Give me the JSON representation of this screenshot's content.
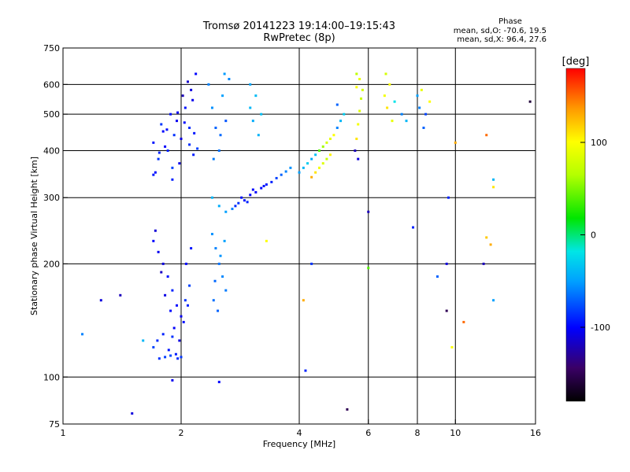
{
  "header": {
    "title": "Tromsø 20141223 19:14:00–19:15:43",
    "subtitle": "RwPretec (8p)"
  },
  "phase_box": {
    "heading": "Phase",
    "line_o": "mean, sd,O: -70.6, 19.5",
    "line_x": "mean, sd,X:  96.4, 27.6"
  },
  "colorbar": {
    "label": "[deg]",
    "min": -180,
    "max": 180,
    "ticks": [
      {
        "v": 100,
        "t": "100"
      },
      {
        "v": 0,
        "t": "0"
      },
      {
        "v": -100,
        "t": "-100"
      }
    ]
  },
  "chart_data": {
    "type": "scatter",
    "title": "Tromsø 20141223 19:14:00–19:15:43",
    "subtitle": "RwPretec (8p)",
    "xlabel": "Frequency [MHz]",
    "ylabel": "Stationary phase Virtual Height [km]",
    "x_scale": "log",
    "y_scale": "log",
    "xlim": [
      1,
      16
    ],
    "ylim": [
      75,
      750
    ],
    "x_ticks": [
      {
        "v": 1,
        "t": "1"
      },
      {
        "v": 2,
        "t": "2"
      },
      {
        "v": 4,
        "t": "4"
      },
      {
        "v": 6,
        "t": "6"
      },
      {
        "v": 8,
        "t": "8"
      },
      {
        "v": 10,
        "t": "10"
      },
      {
        "v": 16,
        "t": "16"
      }
    ],
    "x_grid": [
      2,
      4,
      6,
      8,
      10
    ],
    "y_ticks": [
      {
        "v": 750,
        "t": "750"
      },
      {
        "v": 600,
        "t": "600"
      },
      {
        "v": 500,
        "t": "500"
      },
      {
        "v": 400,
        "t": "400"
      },
      {
        "v": 300,
        "t": "300"
      },
      {
        "v": 200,
        "t": "200"
      },
      {
        "v": 100,
        "t": "100"
      },
      {
        "v": 75,
        "t": "75"
      }
    ],
    "y_grid": [
      600,
      500,
      400,
      300,
      200,
      100
    ],
    "color_by": "phase [deg]",
    "points": [
      [
        1.7,
        420,
        -95
      ],
      [
        1.75,
        380,
        -85
      ],
      [
        1.8,
        450,
        -100
      ],
      [
        1.85,
        400,
        -90
      ],
      [
        1.9,
        360,
        -80
      ],
      [
        1.95,
        480,
        -105
      ],
      [
        2.0,
        430,
        -110
      ],
      [
        2.05,
        520,
        -95
      ],
      [
        2.1,
        460,
        -88
      ],
      [
        2.15,
        390,
        -92
      ],
      [
        1.72,
        350,
        -98
      ],
      [
        1.78,
        470,
        -84
      ],
      [
        1.82,
        410,
        -102
      ],
      [
        1.88,
        500,
        -96
      ],
      [
        1.92,
        440,
        -86
      ],
      [
        1.98,
        370,
        -108
      ],
      [
        2.02,
        560,
        -120
      ],
      [
        2.08,
        610,
        -115
      ],
      [
        2.12,
        580,
        -110
      ],
      [
        2.18,
        640,
        -100
      ],
      [
        1.7,
        345,
        -93
      ],
      [
        1.76,
        395,
        -89
      ],
      [
        1.84,
        455,
        -97
      ],
      [
        1.9,
        335,
        -91
      ],
      [
        1.96,
        505,
        -103
      ],
      [
        2.04,
        475,
        -99
      ],
      [
        2.1,
        415,
        -87
      ],
      [
        2.16,
        445,
        -94
      ],
      [
        2.2,
        405,
        -82
      ],
      [
        2.14,
        545,
        -106
      ],
      [
        2.35,
        600,
        -60
      ],
      [
        2.4,
        520,
        -55
      ],
      [
        2.45,
        460,
        -70
      ],
      [
        2.5,
        400,
        -65
      ],
      [
        2.55,
        560,
        -50
      ],
      [
        2.6,
        480,
        -75
      ],
      [
        2.65,
        620,
        -58
      ],
      [
        2.42,
        380,
        -62
      ],
      [
        2.52,
        440,
        -68
      ],
      [
        2.58,
        640,
        -52
      ],
      [
        3.0,
        520,
        -40
      ],
      [
        3.05,
        480,
        -45
      ],
      [
        3.1,
        560,
        -38
      ],
      [
        3.15,
        440,
        -42
      ],
      [
        3.0,
        600,
        -48
      ],
      [
        3.2,
        500,
        -36
      ],
      [
        2.4,
        300,
        -40
      ],
      [
        2.5,
        285,
        -45
      ],
      [
        2.6,
        275,
        -50
      ],
      [
        2.7,
        280,
        -60
      ],
      [
        2.8,
        290,
        -85
      ],
      [
        2.9,
        295,
        -95
      ],
      [
        3.0,
        305,
        -100
      ],
      [
        3.1,
        310,
        -102
      ],
      [
        3.2,
        318,
        -98
      ],
      [
        3.3,
        325,
        -94
      ],
      [
        3.4,
        330,
        -90
      ],
      [
        3.5,
        338,
        -80
      ],
      [
        3.6,
        345,
        -70
      ],
      [
        3.7,
        352,
        -60
      ],
      [
        3.8,
        360,
        -55
      ],
      [
        2.75,
        285,
        -88
      ],
      [
        2.85,
        300,
        -96
      ],
      [
        2.95,
        292,
        -90
      ],
      [
        3.05,
        315,
        -99
      ],
      [
        3.25,
        322,
        -95
      ],
      [
        4.0,
        350,
        -50
      ],
      [
        4.1,
        360,
        -40
      ],
      [
        4.2,
        370,
        -30
      ],
      [
        4.3,
        380,
        -45
      ],
      [
        4.4,
        390,
        -35
      ],
      [
        4.5,
        400,
        40
      ],
      [
        4.6,
        410,
        60
      ],
      [
        4.7,
        420,
        80
      ],
      [
        4.8,
        430,
        90
      ],
      [
        4.9,
        440,
        100
      ],
      [
        4.3,
        340,
        130
      ],
      [
        4.4,
        350,
        110
      ],
      [
        4.5,
        360,
        95
      ],
      [
        4.6,
        370,
        85
      ],
      [
        4.7,
        380,
        75
      ],
      [
        4.8,
        390,
        105
      ],
      [
        5.0,
        460,
        -60
      ],
      [
        5.1,
        480,
        -40
      ],
      [
        5.2,
        500,
        -30
      ],
      [
        5.0,
        530,
        -70
      ],
      [
        5.6,
        430,
        110
      ],
      [
        5.65,
        470,
        95
      ],
      [
        5.7,
        510,
        85
      ],
      [
        5.75,
        550,
        75
      ],
      [
        5.6,
        590,
        100
      ],
      [
        5.7,
        620,
        90
      ],
      [
        5.8,
        580,
        80
      ],
      [
        5.55,
        400,
        -120
      ],
      [
        5.65,
        380,
        -110
      ],
      [
        5.6,
        640,
        70
      ],
      [
        6.6,
        560,
        95
      ],
      [
        6.7,
        520,
        110
      ],
      [
        6.8,
        600,
        100
      ],
      [
        6.9,
        480,
        90
      ],
      [
        7.0,
        540,
        -20
      ],
      [
        6.65,
        640,
        80
      ],
      [
        7.3,
        500,
        -60
      ],
      [
        7.5,
        480,
        -40
      ],
      [
        8.0,
        560,
        -50
      ],
      [
        8.1,
        520,
        -60
      ],
      [
        8.2,
        580,
        90
      ],
      [
        8.4,
        500,
        -80
      ],
      [
        8.6,
        540,
        100
      ],
      [
        8.3,
        460,
        -70
      ],
      [
        1.7,
        230,
        -100
      ],
      [
        1.75,
        215,
        -105
      ],
      [
        1.8,
        200,
        -110
      ],
      [
        1.85,
        185,
        -95
      ],
      [
        1.9,
        170,
        -90
      ],
      [
        1.95,
        155,
        -100
      ],
      [
        2.0,
        145,
        -105
      ],
      [
        2.05,
        160,
        -85
      ],
      [
        2.1,
        175,
        -80
      ],
      [
        1.72,
        245,
        -112
      ],
      [
        1.78,
        190,
        -118
      ],
      [
        1.82,
        165,
        -108
      ],
      [
        1.88,
        150,
        -98
      ],
      [
        1.92,
        135,
        -102
      ],
      [
        1.98,
        125,
        -110
      ],
      [
        2.03,
        140,
        -96
      ],
      [
        2.08,
        155,
        -90
      ],
      [
        1.74,
        125,
        -88
      ],
      [
        1.86,
        118,
        -95
      ],
      [
        1.94,
        115,
        -92
      ],
      [
        1.7,
        120,
        -80
      ],
      [
        1.76,
        112,
        -85
      ],
      [
        1.82,
        113,
        -82
      ],
      [
        1.88,
        114,
        -78
      ],
      [
        1.96,
        112,
        -88
      ],
      [
        2.0,
        113,
        -84
      ],
      [
        1.8,
        130,
        -90
      ],
      [
        1.9,
        128,
        -86
      ],
      [
        2.06,
        200,
        -100
      ],
      [
        2.12,
        220,
        -95
      ],
      [
        2.4,
        240,
        -55
      ],
      [
        2.45,
        220,
        -60
      ],
      [
        2.5,
        200,
        -65
      ],
      [
        2.55,
        185,
        -58
      ],
      [
        2.6,
        170,
        -62
      ],
      [
        2.42,
        160,
        -66
      ],
      [
        2.48,
        150,
        -70
      ],
      [
        2.52,
        210,
        -54
      ],
      [
        2.58,
        230,
        -50
      ],
      [
        2.44,
        180,
        -68
      ],
      [
        1.12,
        130,
        -60
      ],
      [
        1.25,
        160,
        -110
      ],
      [
        1.4,
        165,
        -120
      ],
      [
        1.6,
        125,
        -40
      ],
      [
        1.5,
        80,
        -110
      ],
      [
        1.9,
        98,
        -105
      ],
      [
        2.5,
        97,
        -100
      ],
      [
        4.15,
        104,
        -90
      ],
      [
        5.3,
        82,
        -150
      ],
      [
        4.1,
        160,
        130
      ],
      [
        6.0,
        195,
        40
      ],
      [
        6.0,
        275,
        -120
      ],
      [
        9.0,
        185,
        -70
      ],
      [
        9.5,
        200,
        -110
      ],
      [
        9.5,
        150,
        -150
      ],
      [
        9.8,
        120,
        100
      ],
      [
        10.5,
        140,
        150
      ],
      [
        12.0,
        235,
        120
      ],
      [
        12.3,
        225,
        130
      ],
      [
        12.5,
        160,
        -50
      ],
      [
        12.5,
        335,
        -40
      ],
      [
        12.5,
        320,
        110
      ],
      [
        12.0,
        440,
        150
      ],
      [
        9.6,
        300,
        -90
      ],
      [
        11.8,
        200,
        -120
      ],
      [
        15.5,
        540,
        -160
      ],
      [
        10.0,
        420,
        130
      ],
      [
        7.8,
        250,
        -90
      ],
      [
        4.3,
        200,
        -85
      ],
      [
        3.3,
        230,
        100
      ]
    ]
  }
}
